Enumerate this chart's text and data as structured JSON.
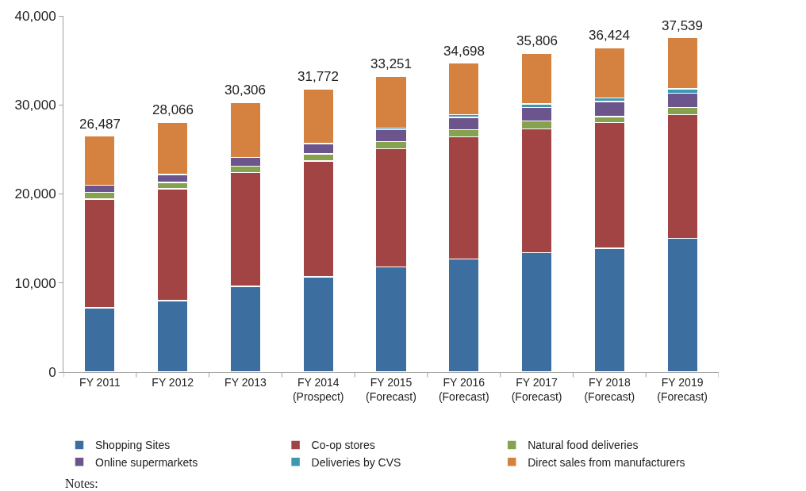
{
  "chart_data": {
    "type": "bar",
    "stacked": true,
    "categories": [
      "FY 2011",
      "FY 2012",
      "FY 2013",
      "FY 2014\n(Prospect)",
      "FY 2015\n(Forecast)",
      "FY 2016\n(Forecast)",
      "FY 2017\n(Forecast)",
      "FY 2018\n(Forecast)",
      "FY 2019\n(Forecast)"
    ],
    "series": [
      {
        "name": "Shopping Sites",
        "color": "#3c6e9f",
        "values": [
          7200,
          8000,
          9600,
          10700,
          11800,
          12700,
          13400,
          13900,
          15000
        ]
      },
      {
        "name": "Co-op stores",
        "color": "#a24443",
        "values": [
          12200,
          12600,
          12800,
          13000,
          13300,
          13700,
          13900,
          14100,
          13900
        ]
      },
      {
        "name": "Natural food deliveries",
        "color": "#87a24e",
        "values": [
          800,
          700,
          700,
          800,
          800,
          800,
          900,
          700,
          800
        ]
      },
      {
        "name": "Online supermarkets",
        "color": "#6c558c",
        "values": [
          800,
          900,
          1000,
          1100,
          1300,
          1400,
          1500,
          1700,
          1600
        ]
      },
      {
        "name": "Deliveries by CVS",
        "color": "#3e97b0",
        "values": [
          0,
          0,
          0,
          100,
          200,
          300,
          400,
          400,
          500
        ]
      },
      {
        "name": "Direct sales from manufacturers",
        "color": "#d58140",
        "values": [
          5487,
          5866,
          6206,
          6072,
          5851,
          5798,
          5706,
          5624,
          5739
        ]
      }
    ],
    "totals": [
      "26,487",
      "28,066",
      "30,306",
      "31,772",
      "33,251",
      "34,698",
      "35,806",
      "36,424",
      "37,539"
    ],
    "ylim": [
      0,
      40000
    ],
    "yticks": [
      {
        "value": 0,
        "label": "0"
      },
      {
        "value": 10000,
        "label": "10,000"
      },
      {
        "value": 20000,
        "label": "20,000"
      },
      {
        "value": 30000,
        "label": "30,000"
      },
      {
        "value": 40000,
        "label": "40,000"
      }
    ],
    "legend": "bottom",
    "annotations": [
      "Notes:"
    ]
  }
}
